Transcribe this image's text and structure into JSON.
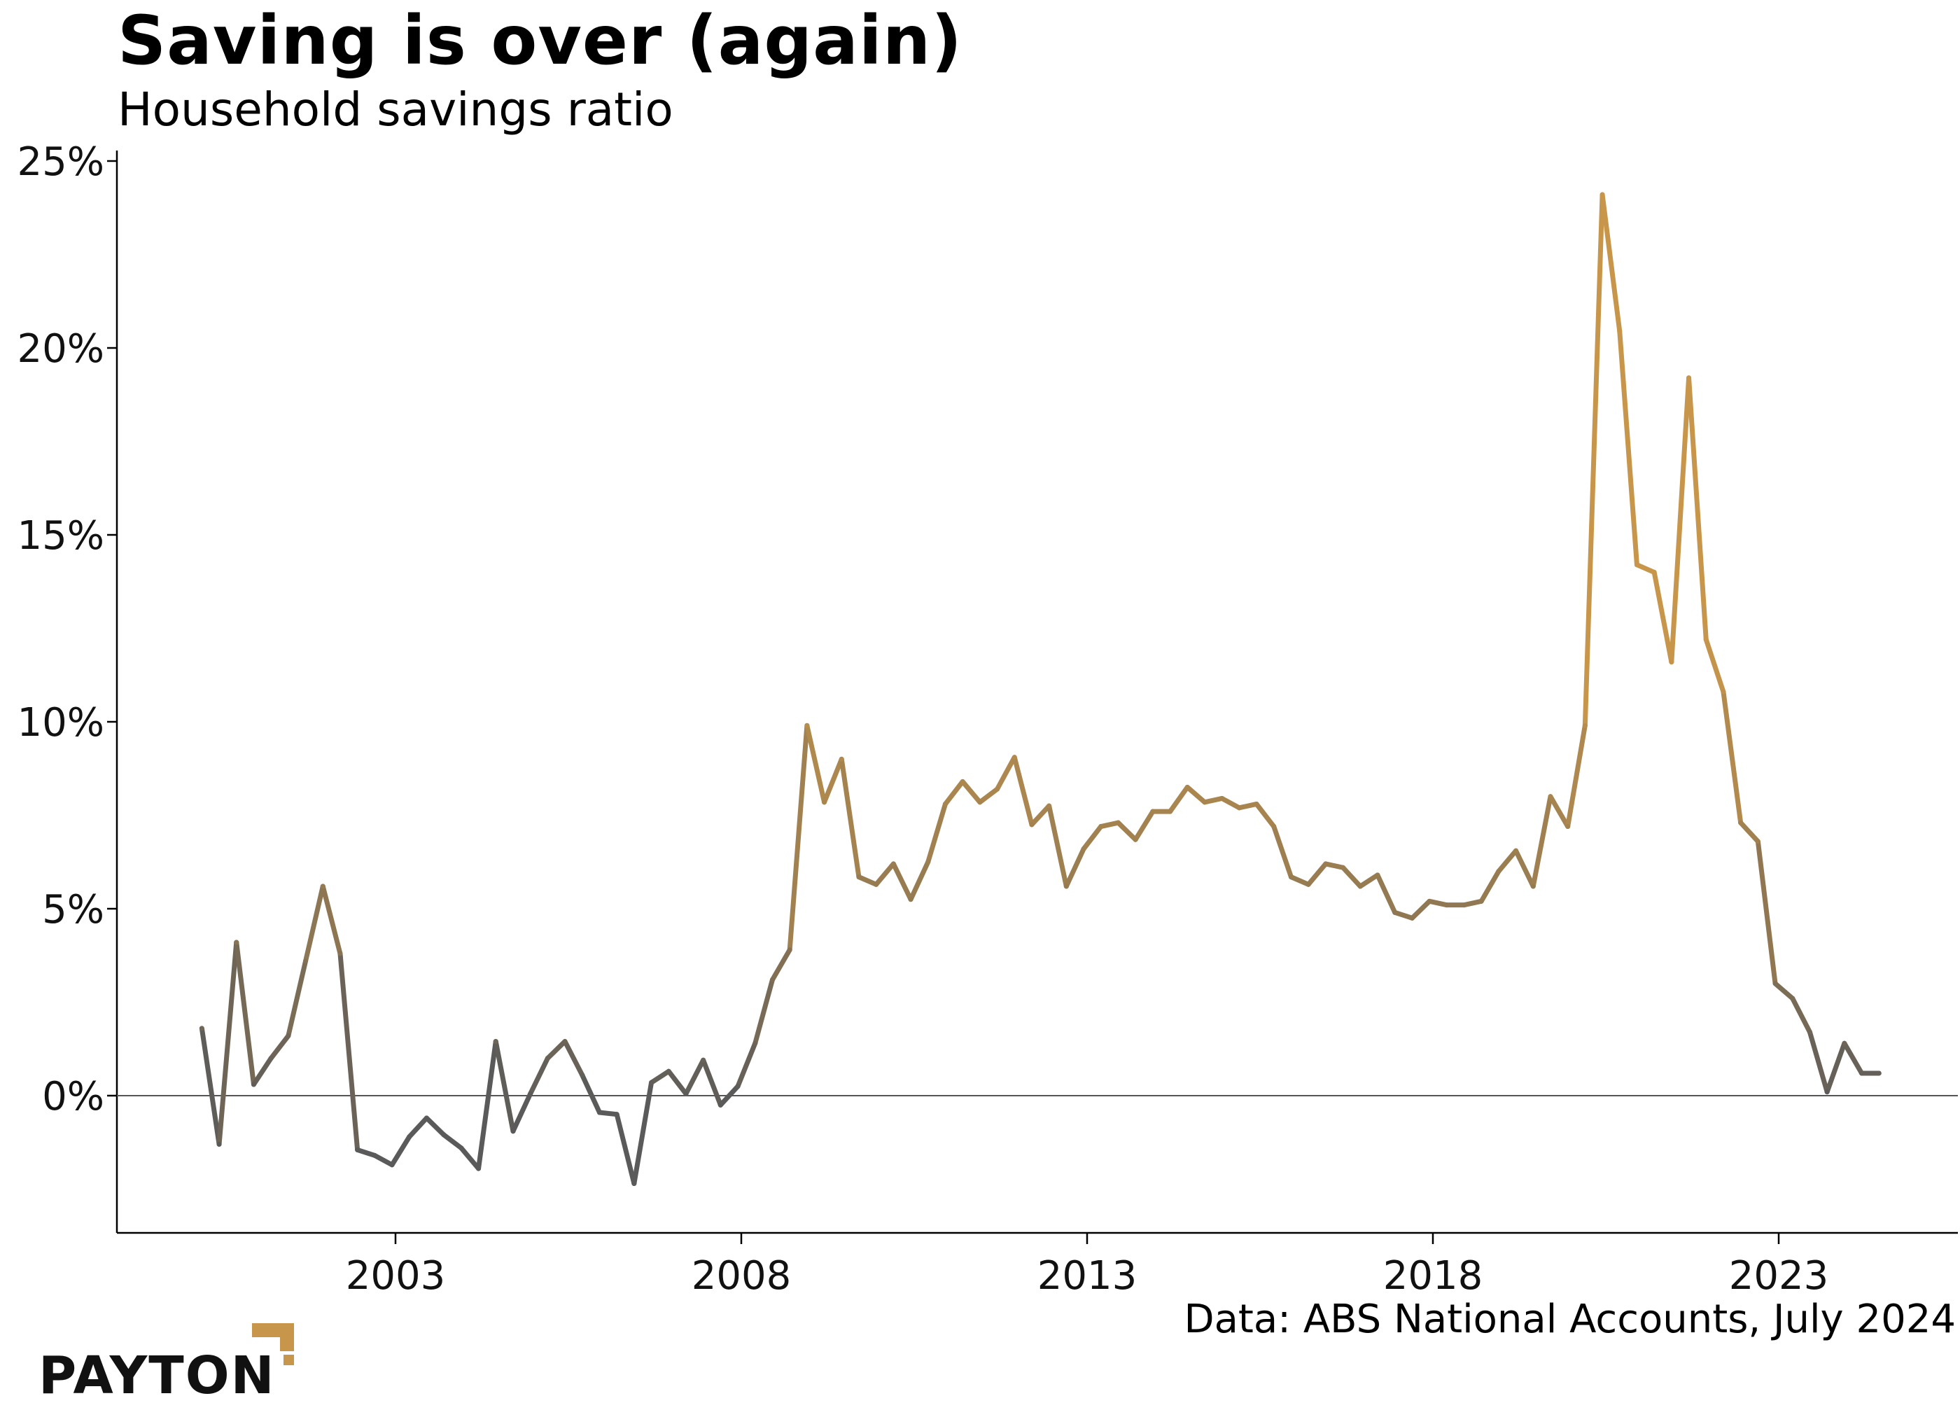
{
  "title": "Saving is over (again)",
  "subtitle": "Household savings ratio",
  "source": "Data: ABS National Accounts, July 2024",
  "logo_text": "PAYTON",
  "colors": {
    "low": "#5a5a5a",
    "high": "#c8964a",
    "zero_line": "#555555",
    "axis": "#000000"
  },
  "chart_data": {
    "type": "line",
    "title": "Saving is over (again)",
    "subtitle": "Household savings ratio",
    "xlabel": "",
    "ylabel": "",
    "frequency": "quarterly",
    "x_ticks": [
      "2003",
      "2008",
      "2013",
      "2018",
      "2023"
    ],
    "y_ticks": [
      "0%",
      "5%",
      "10%",
      "15%",
      "20%",
      "25%"
    ],
    "y_tick_values": [
      0,
      5,
      10,
      15,
      20,
      25
    ],
    "ylim": [
      -3.7,
      25
    ],
    "xlim": [
      "1999",
      "2026"
    ],
    "grid": false,
    "color_encoding": "line colour shifts from grey (low) to gold (high) with value",
    "x": [
      "2000-Q1",
      "2000-Q2",
      "2000-Q3",
      "2000-Q4",
      "2001-Q1",
      "2001-Q2",
      "2001-Q3",
      "2001-Q4",
      "2002-Q1",
      "2002-Q2",
      "2002-Q3",
      "2002-Q4",
      "2003-Q1",
      "2003-Q2",
      "2003-Q3",
      "2003-Q4",
      "2004-Q1",
      "2004-Q2",
      "2004-Q3",
      "2004-Q4",
      "2005-Q1",
      "2005-Q2",
      "2005-Q3",
      "2005-Q4",
      "2006-Q1",
      "2006-Q2",
      "2006-Q3",
      "2006-Q4",
      "2007-Q1",
      "2007-Q2",
      "2007-Q3",
      "2007-Q4",
      "2008-Q1",
      "2008-Q2",
      "2008-Q3",
      "2008-Q4",
      "2009-Q1",
      "2009-Q2",
      "2009-Q3",
      "2009-Q4",
      "2010-Q1",
      "2010-Q2",
      "2010-Q3",
      "2010-Q4",
      "2011-Q1",
      "2011-Q2",
      "2011-Q3",
      "2011-Q4",
      "2012-Q1",
      "2012-Q2",
      "2012-Q3",
      "2012-Q4",
      "2013-Q1",
      "2013-Q2",
      "2013-Q3",
      "2013-Q4",
      "2014-Q1",
      "2014-Q2",
      "2014-Q3",
      "2014-Q4",
      "2015-Q1",
      "2015-Q2",
      "2015-Q3",
      "2015-Q4",
      "2016-Q1",
      "2016-Q2",
      "2016-Q3",
      "2016-Q4",
      "2017-Q1",
      "2017-Q2",
      "2017-Q3",
      "2017-Q4",
      "2018-Q1",
      "2018-Q2",
      "2018-Q3",
      "2018-Q4",
      "2019-Q1",
      "2019-Q2",
      "2019-Q3",
      "2019-Q4",
      "2020-Q1",
      "2020-Q2",
      "2020-Q3",
      "2020-Q4",
      "2021-Q1",
      "2021-Q2",
      "2021-Q3",
      "2021-Q4",
      "2022-Q1",
      "2022-Q2",
      "2022-Q3",
      "2022-Q4",
      "2023-Q1",
      "2023-Q2",
      "2023-Q3",
      "2023-Q4",
      "2024-Q1",
      "2024-Q2"
    ],
    "values": [
      1.8,
      -1.3,
      4.1,
      0.3,
      1.0,
      1.6,
      3.6,
      5.6,
      3.8,
      -1.45,
      -1.6,
      -1.85,
      -1.1,
      -0.6,
      -1.05,
      -1.4,
      -1.95,
      1.45,
      -0.95,
      0.05,
      1.0,
      1.45,
      0.55,
      -0.45,
      -0.5,
      -2.35,
      0.35,
      0.65,
      0.05,
      0.95,
      -0.25,
      0.25,
      1.4,
      3.1,
      3.9,
      9.9,
      7.85,
      9.0,
      5.85,
      5.65,
      6.2,
      5.25,
      6.25,
      7.8,
      8.4,
      7.85,
      8.2,
      9.05,
      7.25,
      7.75,
      5.6,
      6.6,
      7.2,
      7.3,
      6.85,
      7.6,
      7.6,
      8.25,
      7.85,
      7.95,
      7.7,
      7.8,
      7.2,
      5.85,
      5.65,
      6.2,
      6.1,
      5.6,
      5.9,
      4.9,
      4.75,
      5.2,
      5.1,
      5.1,
      5.2,
      6.0,
      6.55,
      5.6,
      8.0,
      7.2,
      9.9,
      24.1,
      20.45,
      14.2,
      14.0,
      11.6,
      19.2,
      12.2,
      10.8,
      7.3,
      6.8,
      3.0,
      2.6,
      1.7,
      0.1,
      1.4,
      0.6,
      0.6
    ]
  }
}
